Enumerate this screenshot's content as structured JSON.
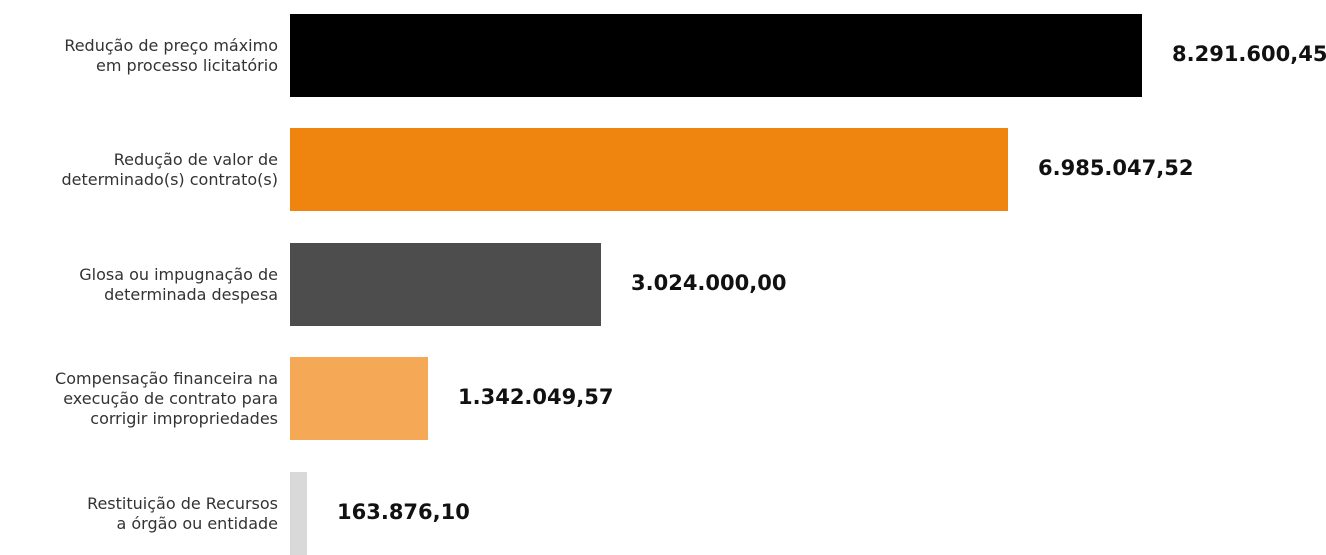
{
  "chart_data": {
    "type": "bar",
    "orientation": "horizontal",
    "title": "",
    "xlabel": "",
    "ylabel": "",
    "grid": false,
    "legend": "none",
    "xlim": [
      0,
      8291600.45
    ],
    "categories": [
      "Redução de preço máximo\nem processo licitatório",
      "Redução de valor de\ndeterminado(s) contrato(s)",
      "Glosa ou impugnação de\ndeterminada despesa",
      "Compensação financeira na\nexecução de contrato para\ncorrigir impropriedades",
      "Restituição de Recursos\na órgão ou entidade"
    ],
    "values": [
      8291600.45,
      6985047.52,
      3024000.0,
      1342049.57,
      163876.1
    ],
    "value_labels": [
      "8.291.600,45",
      "6.985.047,52",
      "3.024.000,00",
      "1.342.049,57",
      "163.876,10"
    ],
    "colors": [
      "#000000",
      "#ef850f",
      "#4d4d4d",
      "#f5a855",
      "#d9d9d9"
    ]
  }
}
